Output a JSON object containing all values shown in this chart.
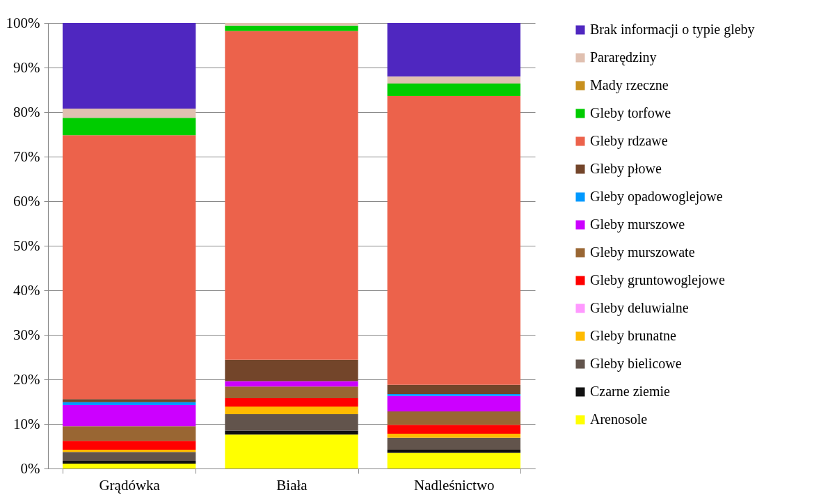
{
  "chart_data": {
    "type": "bar",
    "stacked": true,
    "categories": [
      "Grądówka",
      "Biała",
      "Nadleśnictwo"
    ],
    "ylim": [
      0,
      100
    ],
    "yticks": [
      {
        "value": 0,
        "label": "0%"
      },
      {
        "value": 10,
        "label": "10%"
      },
      {
        "value": 20,
        "label": "20%"
      },
      {
        "value": 30,
        "label": "30%"
      },
      {
        "value": 40,
        "label": "40%"
      },
      {
        "value": 50,
        "label": "50%"
      },
      {
        "value": 60,
        "label": "60%"
      },
      {
        "value": 70,
        "label": "70%"
      },
      {
        "value": 80,
        "label": "80%"
      },
      {
        "value": 90,
        "label": "90%"
      },
      {
        "value": 100,
        "label": "100%"
      }
    ],
    "grid": "y",
    "legend": "right",
    "series": [
      {
        "name": "Arenosole",
        "color": "#ffff00",
        "values": [
          1.1,
          7.6,
          3.5
        ]
      },
      {
        "name": "Czarne ziemie",
        "color": "#111111",
        "values": [
          0.6,
          0.9,
          0.7
        ]
      },
      {
        "name": "Gleby bielicowe",
        "color": "#62544c",
        "values": [
          2.0,
          3.7,
          2.7
        ]
      },
      {
        "name": "Gleby brunatne",
        "color": "#ffbb00",
        "values": [
          0.5,
          1.7,
          0.9
        ]
      },
      {
        "name": "Gleby deluwialne",
        "color": "#ff99ff",
        "values": [
          0,
          0,
          0
        ]
      },
      {
        "name": "Gleby gruntowoglejowe",
        "color": "#ff0000",
        "values": [
          2.0,
          1.9,
          2.0
        ]
      },
      {
        "name": "Gleby murszowate",
        "color": "#996633",
        "values": [
          3.3,
          2.6,
          3.0
        ]
      },
      {
        "name": "Gleby murszowe",
        "color": "#cc00ff",
        "values": [
          4.7,
          1.2,
          3.5
        ]
      },
      {
        "name": "Gleby opadowoglejowe",
        "color": "#0099ff",
        "values": [
          0.7,
          0,
          0.4
        ]
      },
      {
        "name": "Gleby płowe",
        "color": "#73452a",
        "values": [
          0.7,
          4.8,
          2.1
        ]
      },
      {
        "name": "Gleby rdzawe",
        "color": "#ec624b",
        "values": [
          59.2,
          73.8,
          64.8
        ]
      },
      {
        "name": "Gleby torfowe",
        "color": "#00cc00",
        "values": [
          3.9,
          1.2,
          2.8
        ]
      },
      {
        "name": "Mady rzeczne",
        "color": "#c8901e",
        "values": [
          0,
          0,
          0
        ]
      },
      {
        "name": "Pararędziny",
        "color": "#e0c0b0",
        "values": [
          2.1,
          0.6,
          1.6
        ]
      },
      {
        "name": "Brak informacji o typie gleby",
        "color": "#4f27c0",
        "values": [
          19.2,
          0,
          12.0
        ]
      }
    ]
  }
}
